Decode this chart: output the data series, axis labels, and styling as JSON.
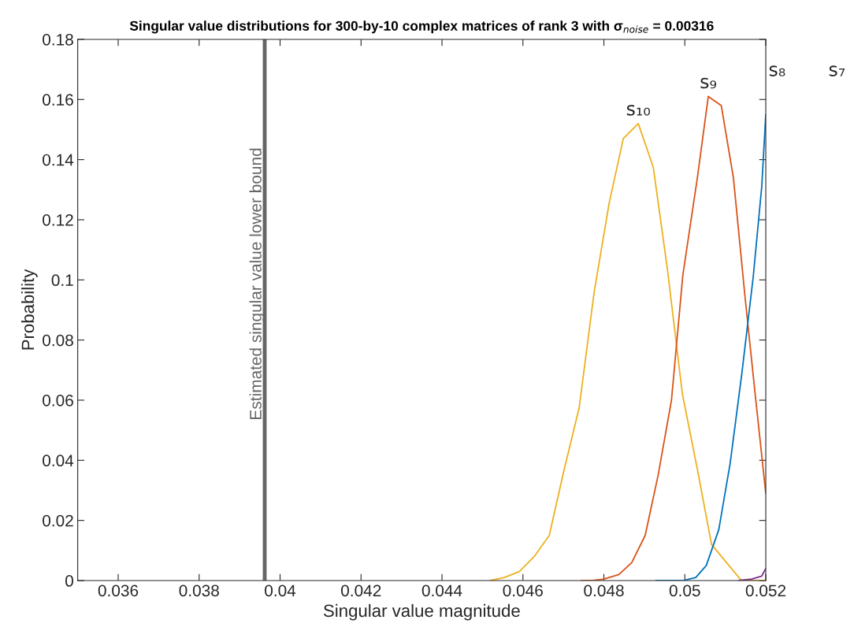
{
  "chart_data": {
    "type": "line",
    "title": "Singular value distributions for 300-by-10 complex matrices of rank 3 with σ$_{noise}$ = 0.00316",
    "xlabel": "Singular value magnitude",
    "ylabel": "Probability",
    "xlim": [
      0.035,
      0.052
    ],
    "xticks": [
      0.036,
      0.038,
      0.04,
      0.042,
      0.044,
      0.046,
      0.048,
      0.05,
      0.052
    ],
    "ylim": [
      0,
      0.18
    ],
    "yticks": [
      0,
      0.02,
      0.04,
      0.06,
      0.08,
      0.1,
      0.12,
      0.14,
      0.16,
      0.18
    ],
    "grid": false,
    "legend": false,
    "marker": "none",
    "line_style": "solid",
    "series": [
      {
        "name": "s₁₀",
        "color": "#edb120",
        "x": [
          0.04519,
          0.04554,
          0.04591,
          0.04628,
          0.04665,
          0.04702,
          0.04739,
          0.04776,
          0.04813,
          0.04848,
          0.04885,
          0.04922,
          0.04957,
          0.04994,
          0.05031,
          0.05066,
          0.05103,
          0.0514,
          0.05177,
          0.052
        ],
        "values": [
          0,
          0.001,
          0.003,
          0.008,
          0.015,
          0.037,
          0.0575,
          0.096,
          0.1255,
          0.147,
          0.152,
          0.1375,
          0.1035,
          0.062,
          0.037,
          0.012,
          0.006,
          0,
          0,
          0
        ]
      },
      {
        "name": "s₉",
        "color": "#d95319",
        "x": [
          0.04744,
          0.04772,
          0.048,
          0.04837,
          0.04869,
          0.04902,
          0.04934,
          0.04967,
          0.04995,
          0.05031,
          0.05058,
          0.0509,
          0.0512,
          0.05149,
          0.05173,
          0.052
        ],
        "values": [
          0,
          0,
          0.0005,
          0.002,
          0.006,
          0.015,
          0.035,
          0.06,
          0.1015,
          0.134,
          0.161,
          0.158,
          0.134,
          0.094,
          0.063,
          0.029
        ]
      },
      {
        "name": "s₈",
        "color": "#0072bd",
        "x": [
          0.04929,
          0.04962,
          0.04995,
          0.05027,
          0.05053,
          0.05084,
          0.05112,
          0.05141,
          0.05169,
          0.0519,
          0.052
        ],
        "values": [
          0,
          0,
          0,
          0.001,
          0.005,
          0.017,
          0.039,
          0.069,
          0.101,
          0.131,
          0.155
        ]
      },
      {
        "color": "#7e2f8e",
        "x": [
          0.05133,
          0.05165,
          0.0519,
          0.052
        ],
        "values": [
          0,
          0.0005,
          0.0015,
          0.004
        ]
      }
    ],
    "ref_lines": [
      {
        "axis": "x",
        "value": 0.03962,
        "label": "Estimated singular value lower bound",
        "color": "#666666"
      }
    ],
    "annotations": [
      "s₇"
    ]
  }
}
